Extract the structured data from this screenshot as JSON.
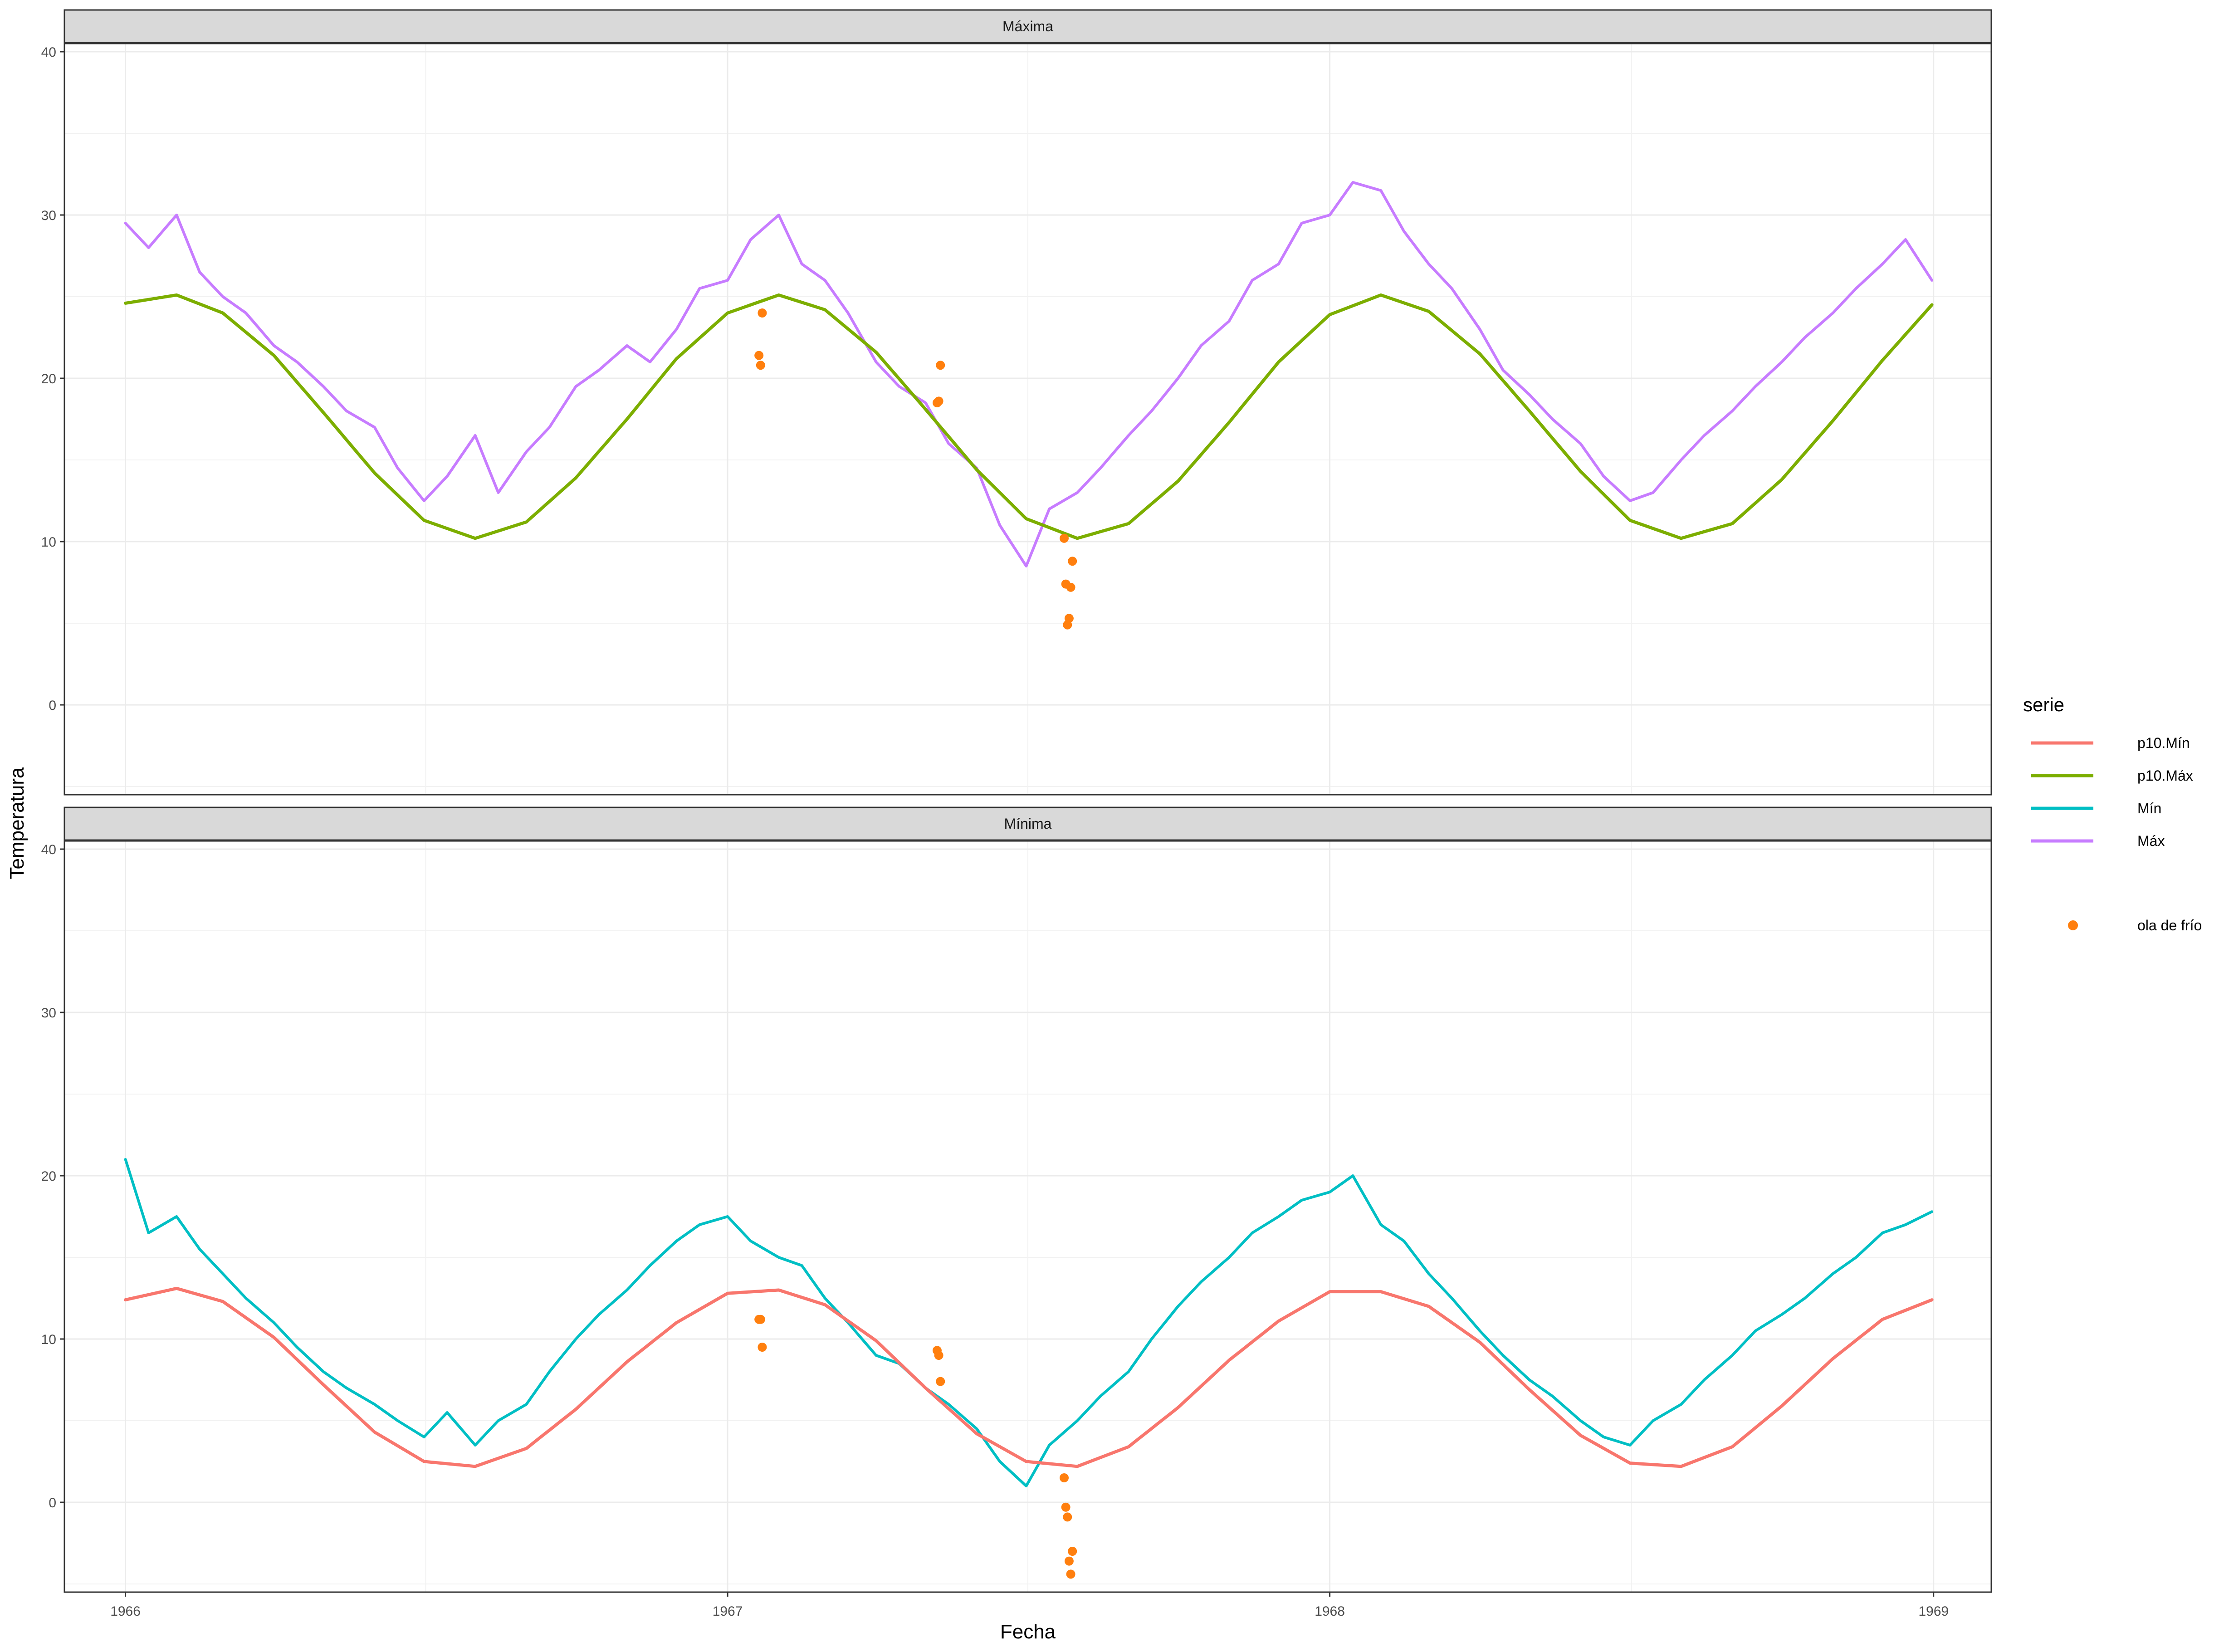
{
  "chart_data": {
    "type": "line",
    "xlabel": "Fecha",
    "ylabel": "Temperatura",
    "x_range": [
      "1965-11-25",
      "1969-02-05"
    ],
    "x_ticks": [
      "1966",
      "1967",
      "1968",
      "1969"
    ],
    "y_range": [
      -5.5,
      40.5
    ],
    "y_ticks": [
      0,
      10,
      20,
      30,
      40
    ],
    "grid": true,
    "legend": {
      "position": "right",
      "title": "serie",
      "entries": [
        {
          "name": "p10.Mín",
          "color": "#f8766d",
          "kind": "line"
        },
        {
          "name": "p10.Máx",
          "color": "#7cae00",
          "kind": "line"
        },
        {
          "name": "Mín",
          "color": "#00bfc4",
          "kind": "line"
        },
        {
          "name": "Máx",
          "color": "#c77cff",
          "kind": "line"
        },
        {
          "name": "ola de frío",
          "color": "#ff7f0e",
          "kind": "point"
        }
      ]
    },
    "panels": [
      {
        "strip": "Máxima",
        "series": [
          {
            "name": "Máx",
            "color": "#c77cff",
            "x": [
              "1966-01-01",
              "1966-01-15",
              "1966-02-01",
              "1966-02-15",
              "1966-03-01",
              "1966-03-15",
              "1966-04-01",
              "1966-04-15",
              "1966-05-01",
              "1966-05-15",
              "1966-06-01",
              "1966-06-15",
              "1966-07-01",
              "1966-07-15",
              "1966-08-01",
              "1966-08-15",
              "1966-09-01",
              "1966-09-15",
              "1966-10-01",
              "1966-10-15",
              "1966-11-01",
              "1966-11-15",
              "1966-12-01",
              "1966-12-15",
              "1967-01-01",
              "1967-01-15",
              "1967-02-01",
              "1967-02-15",
              "1967-03-01",
              "1967-03-15",
              "1967-04-01",
              "1967-04-15",
              "1967-05-01",
              "1967-05-15",
              "1967-06-01",
              "1967-06-15",
              "1967-07-01",
              "1967-07-15",
              "1967-08-01",
              "1967-08-15",
              "1967-09-01",
              "1967-09-15",
              "1967-10-01",
              "1967-10-15",
              "1967-11-01",
              "1967-11-15",
              "1967-12-01",
              "1967-12-15",
              "1968-01-01",
              "1968-01-15",
              "1968-02-01",
              "1968-02-15",
              "1968-03-01",
              "1968-03-15",
              "1968-04-01",
              "1968-04-15",
              "1968-05-01",
              "1968-05-15",
              "1968-06-01",
              "1968-06-15",
              "1968-07-01",
              "1968-07-15",
              "1968-08-01",
              "1968-08-15",
              "1968-09-01",
              "1968-09-15",
              "1968-10-01",
              "1968-10-15",
              "1968-11-01",
              "1968-11-15",
              "1968-12-01",
              "1968-12-15",
              "1968-12-31"
            ],
            "values": [
              29.5,
              28.0,
              30.0,
              26.5,
              25.0,
              24.0,
              22.0,
              21.0,
              19.5,
              18.0,
              17.0,
              14.5,
              12.5,
              14.0,
              16.5,
              13.0,
              15.5,
              17.0,
              19.5,
              20.5,
              22.0,
              21.0,
              23.0,
              25.5,
              26.0,
              28.5,
              30.0,
              27.0,
              26.0,
              24.0,
              21.0,
              19.5,
              18.5,
              16.0,
              14.5,
              11.0,
              8.5,
              12.0,
              13.0,
              14.5,
              16.5,
              18.0,
              20.0,
              22.0,
              23.5,
              26.0,
              27.0,
              29.5,
              30.0,
              32.0,
              31.5,
              29.0,
              27.0,
              25.5,
              23.0,
              20.5,
              19.0,
              17.5,
              16.0,
              14.0,
              12.5,
              13.0,
              15.0,
              16.5,
              18.0,
              19.5,
              21.0,
              22.5,
              24.0,
              25.5,
              27.0,
              28.5,
              26.0
            ]
          },
          {
            "name": "p10.Máx",
            "color": "#7cae00",
            "x": [
              "1966-01-01",
              "1966-02-01",
              "1966-03-01",
              "1966-04-01",
              "1966-05-01",
              "1966-06-01",
              "1966-07-01",
              "1966-08-01",
              "1966-09-01",
              "1966-10-01",
              "1966-11-01",
              "1966-12-01",
              "1967-01-01",
              "1967-02-01",
              "1967-03-01",
              "1967-04-01",
              "1967-05-01",
              "1967-06-01",
              "1967-07-01",
              "1967-08-01",
              "1967-09-01",
              "1967-10-01",
              "1967-11-01",
              "1967-12-01",
              "1968-01-01",
              "1968-02-01",
              "1968-03-01",
              "1968-04-01",
              "1968-05-01",
              "1968-06-01",
              "1968-07-01",
              "1968-08-01",
              "1968-09-01",
              "1968-10-01",
              "1968-11-01",
              "1968-12-01",
              "1968-12-31"
            ],
            "values": [
              24.6,
              25.1,
              24.0,
              21.4,
              17.9,
              14.2,
              11.3,
              10.2,
              11.2,
              13.9,
              17.5,
              21.2,
              24.0,
              25.1,
              24.2,
              21.6,
              18.1,
              14.4,
              11.4,
              10.2,
              11.1,
              13.7,
              17.3,
              21.0,
              23.9,
              25.1,
              24.1,
              21.5,
              18.0,
              14.3,
              11.3,
              10.2,
              11.1,
              13.8,
              17.4,
              21.1,
              24.5
            ]
          }
        ],
        "events": {
          "name": "ola de frío",
          "color": "#ff7f0e",
          "x": [
            "1967-01-20",
            "1967-01-21",
            "1967-01-22",
            "1967-05-08",
            "1967-05-09",
            "1967-05-10",
            "1967-07-24",
            "1967-07-25",
            "1967-07-26",
            "1967-07-27",
            "1967-07-28",
            "1967-07-29"
          ],
          "values": [
            21.4,
            20.8,
            24.0,
            18.5,
            18.6,
            20.8,
            10.2,
            7.4,
            4.9,
            5.3,
            7.2,
            8.8
          ]
        }
      },
      {
        "strip": "Mínima",
        "series": [
          {
            "name": "Mín",
            "color": "#00bfc4",
            "x": [
              "1966-01-01",
              "1966-01-15",
              "1966-02-01",
              "1966-02-15",
              "1966-03-01",
              "1966-03-15",
              "1966-04-01",
              "1966-04-15",
              "1966-05-01",
              "1966-05-15",
              "1966-06-01",
              "1966-06-15",
              "1966-07-01",
              "1966-07-15",
              "1966-08-01",
              "1966-08-15",
              "1966-09-01",
              "1966-09-15",
              "1966-10-01",
              "1966-10-15",
              "1966-11-01",
              "1966-11-15",
              "1966-12-01",
              "1966-12-15",
              "1967-01-01",
              "1967-01-15",
              "1967-02-01",
              "1967-02-15",
              "1967-03-01",
              "1967-03-15",
              "1967-04-01",
              "1967-04-15",
              "1967-05-01",
              "1967-05-15",
              "1967-06-01",
              "1967-06-15",
              "1967-07-01",
              "1967-07-15",
              "1967-08-01",
              "1967-08-15",
              "1967-09-01",
              "1967-09-15",
              "1967-10-01",
              "1967-10-15",
              "1967-11-01",
              "1967-11-15",
              "1967-12-01",
              "1967-12-15",
              "1968-01-01",
              "1968-01-15",
              "1968-02-01",
              "1968-02-15",
              "1968-03-01",
              "1968-03-15",
              "1968-04-01",
              "1968-04-15",
              "1968-05-01",
              "1968-05-15",
              "1968-06-01",
              "1968-06-15",
              "1968-07-01",
              "1968-07-15",
              "1968-08-01",
              "1968-08-15",
              "1968-09-01",
              "1968-09-15",
              "1968-10-01",
              "1968-10-15",
              "1968-11-01",
              "1968-11-15",
              "1968-12-01",
              "1968-12-15",
              "1968-12-31"
            ],
            "values": [
              21.0,
              16.5,
              17.5,
              15.5,
              14.0,
              12.5,
              11.0,
              9.5,
              8.0,
              7.0,
              6.0,
              5.0,
              4.0,
              5.5,
              3.5,
              5.0,
              6.0,
              8.0,
              10.0,
              11.5,
              13.0,
              14.5,
              16.0,
              17.0,
              17.5,
              16.0,
              15.0,
              14.5,
              12.5,
              11.0,
              9.0,
              8.5,
              7.0,
              6.0,
              4.5,
              2.5,
              1.0,
              3.5,
              5.0,
              6.5,
              8.0,
              10.0,
              12.0,
              13.5,
              15.0,
              16.5,
              17.5,
              18.5,
              19.0,
              20.0,
              17.0,
              16.0,
              14.0,
              12.5,
              10.5,
              9.0,
              7.5,
              6.5,
              5.0,
              4.0,
              3.5,
              5.0,
              6.0,
              7.5,
              9.0,
              10.5,
              11.5,
              12.5,
              14.0,
              15.0,
              16.5,
              17.0,
              17.8
            ]
          },
          {
            "name": "p10.Mín",
            "color": "#f8766d",
            "x": [
              "1966-01-01",
              "1966-02-01",
              "1966-03-01",
              "1966-04-01",
              "1966-05-01",
              "1966-06-01",
              "1966-07-01",
              "1966-08-01",
              "1966-09-01",
              "1966-10-01",
              "1966-11-01",
              "1966-12-01",
              "1967-01-01",
              "1967-02-01",
              "1967-03-01",
              "1967-04-01",
              "1967-05-01",
              "1967-06-01",
              "1967-07-01",
              "1967-08-01",
              "1967-09-01",
              "1967-10-01",
              "1967-11-01",
              "1967-12-01",
              "1968-01-01",
              "1968-02-01",
              "1968-03-01",
              "1968-04-01",
              "1968-05-01",
              "1968-06-01",
              "1968-07-01",
              "1968-08-01",
              "1968-09-01",
              "1968-10-01",
              "1968-11-01",
              "1968-12-01",
              "1968-12-31"
            ],
            "values": [
              12.4,
              13.1,
              12.3,
              10.1,
              7.2,
              4.3,
              2.5,
              2.2,
              3.3,
              5.7,
              8.6,
              11.0,
              12.8,
              13.0,
              12.1,
              9.9,
              7.0,
              4.2,
              2.5,
              2.2,
              3.4,
              5.8,
              8.7,
              11.1,
              12.9,
              12.9,
              12.0,
              9.8,
              6.9,
              4.1,
              2.4,
              2.2,
              3.4,
              5.9,
              8.8,
              11.2,
              12.4
            ]
          }
        ],
        "events": {
          "name": "ola de frío",
          "color": "#ff7f0e",
          "x": [
            "1967-01-20",
            "1967-01-21",
            "1967-01-22",
            "1967-05-08",
            "1967-05-09",
            "1967-05-10",
            "1967-07-24",
            "1967-07-25",
            "1967-07-26",
            "1967-07-27",
            "1967-07-28",
            "1967-07-29"
          ],
          "values": [
            11.2,
            11.2,
            9.5,
            9.3,
            9.0,
            7.4,
            1.5,
            -0.3,
            -0.9,
            -3.6,
            -4.4,
            -3.0
          ]
        }
      }
    ]
  }
}
